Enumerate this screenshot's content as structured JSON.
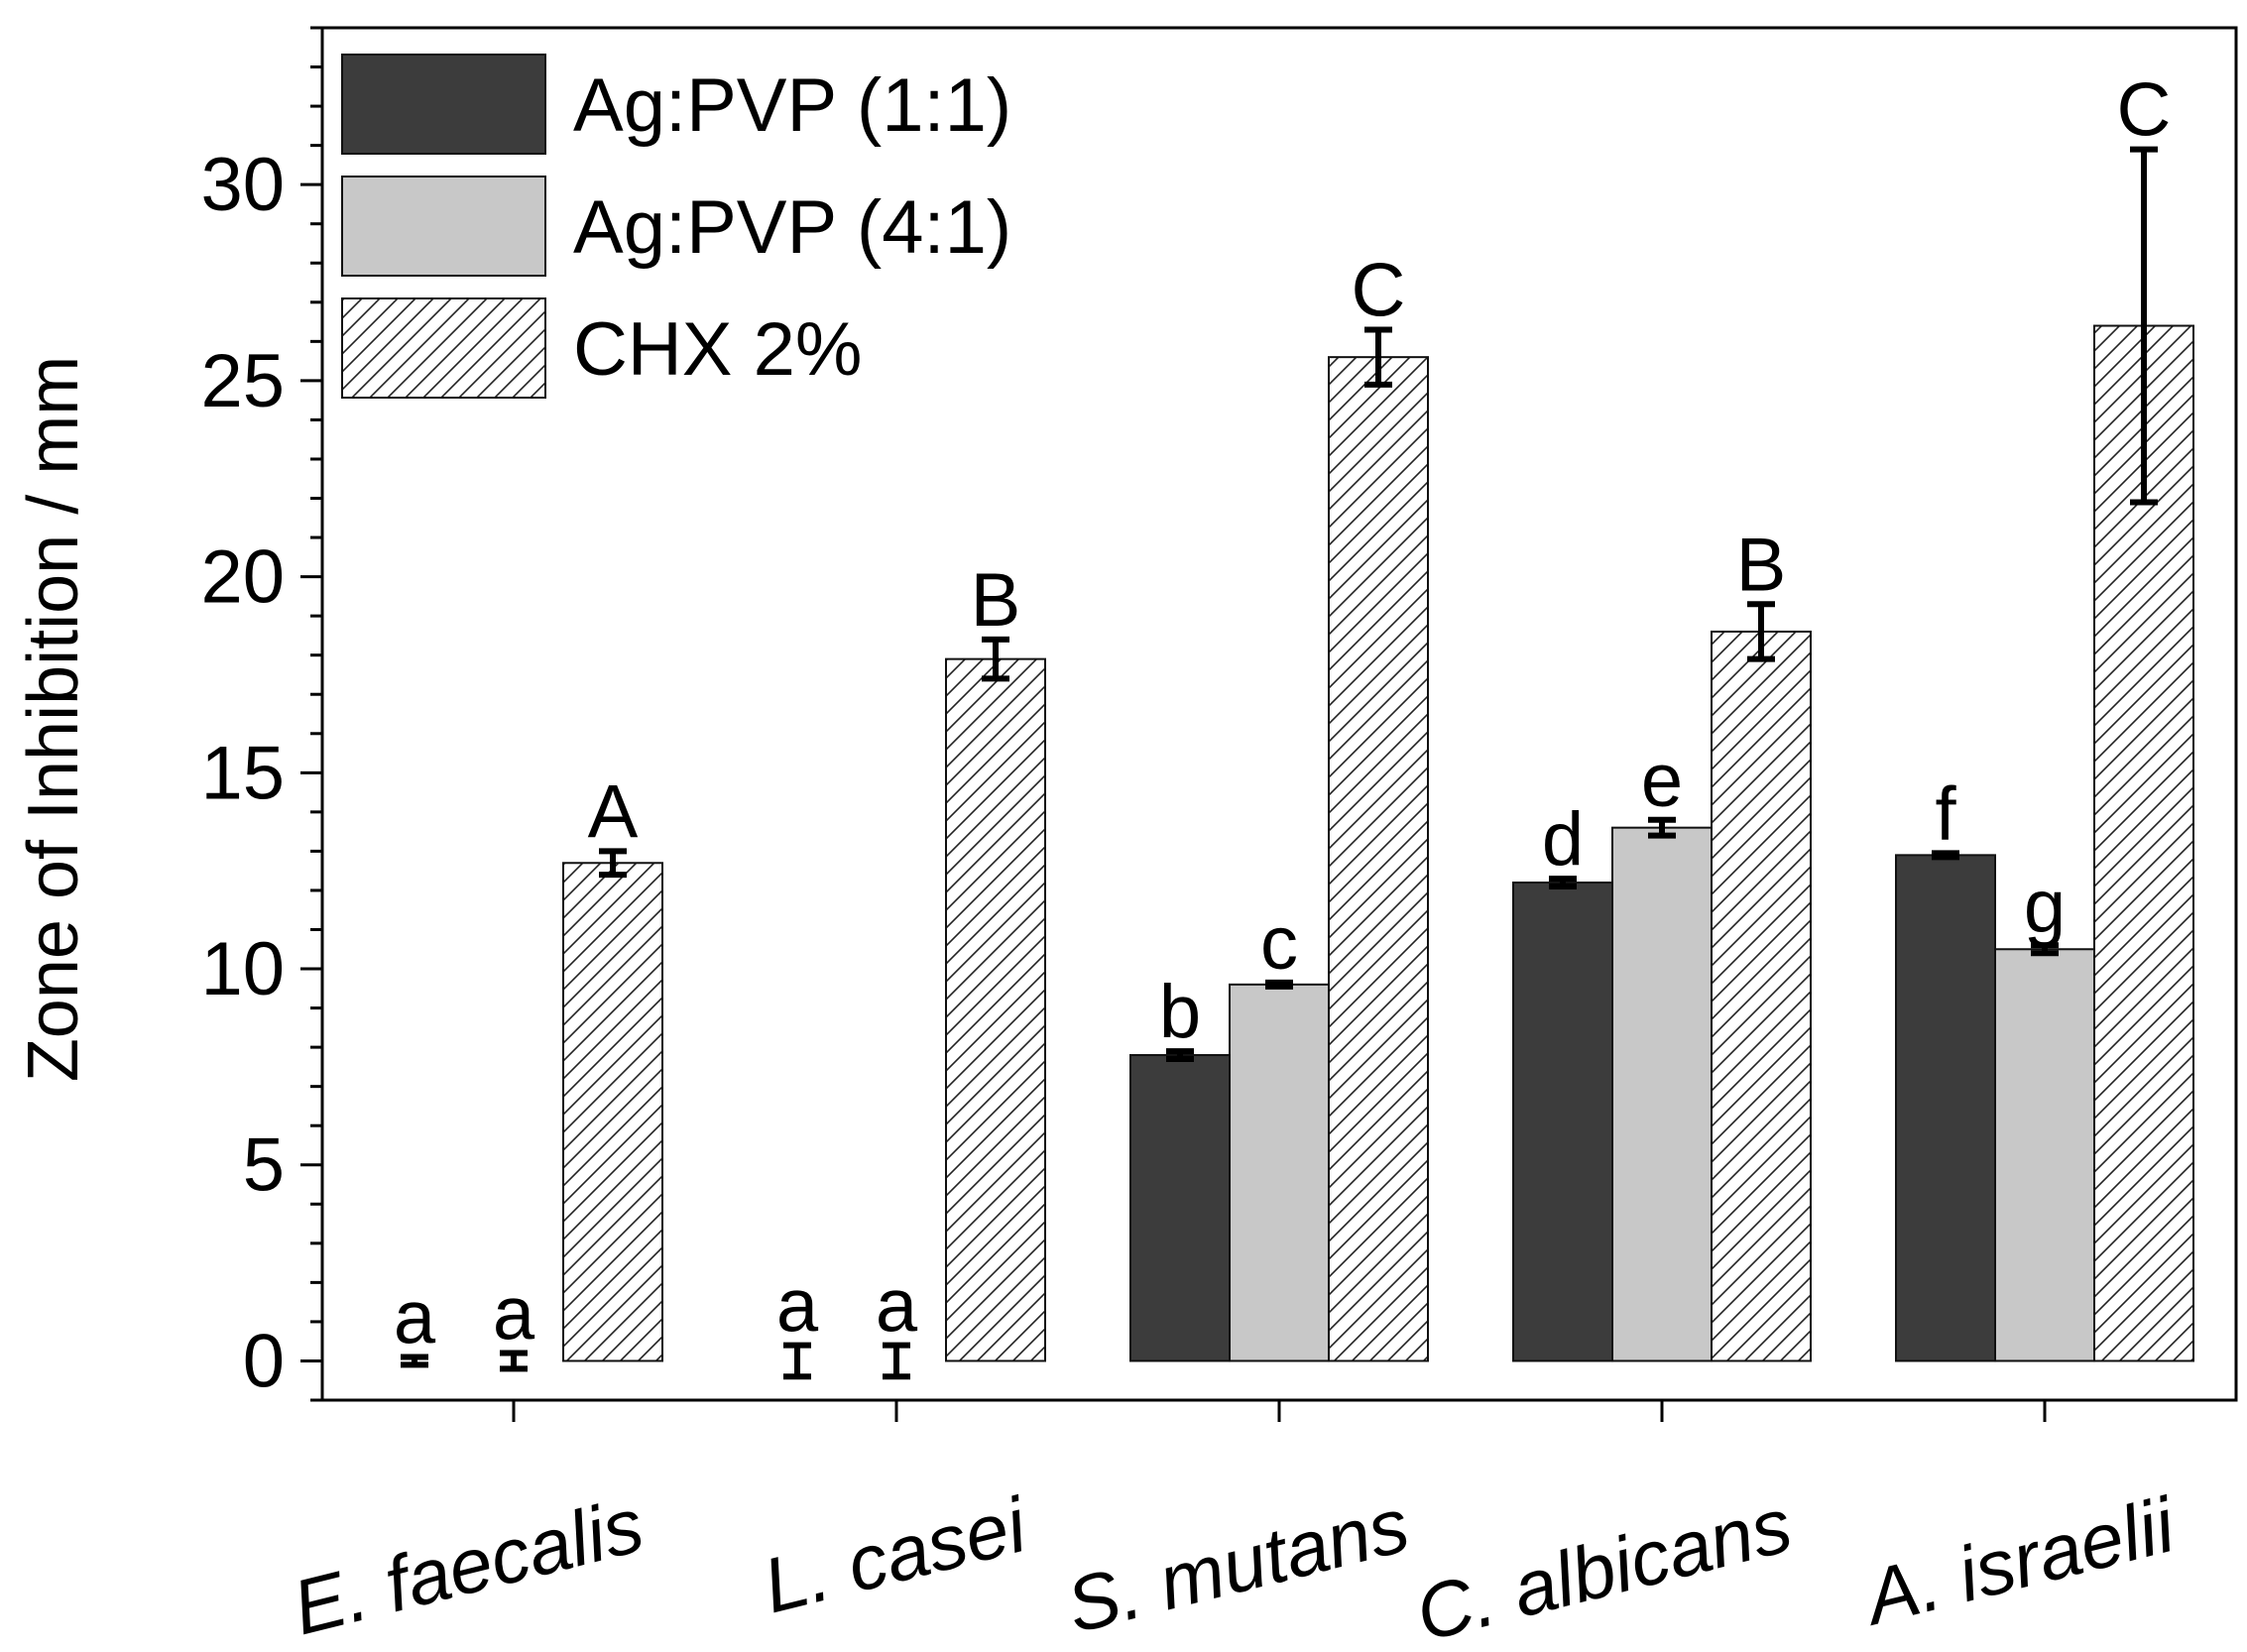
{
  "chart_data": {
    "type": "bar",
    "ylabel": "Zone of Inhibition  / mm",
    "xlabel": "",
    "ylim": [
      -1,
      34
    ],
    "yticks": [
      0,
      5,
      10,
      15,
      20,
      25,
      30
    ],
    "yminor_step": 1,
    "legend_position": "top-left",
    "categories": [
      "E. faecalis",
      "L. casei",
      "S. mutans",
      "C. albicans",
      "A. israelii"
    ],
    "series": [
      {
        "name": "Ag:PVP (1:1)",
        "fill": "#3c3c3c",
        "pattern": "solid",
        "values": [
          0.0,
          0.0,
          7.8,
          12.2,
          12.9
        ],
        "errors": [
          0.1,
          0.4,
          0.1,
          0.1,
          0.05
        ],
        "letters": [
          "a",
          "a",
          "b",
          "d",
          "f"
        ]
      },
      {
        "name": "Ag:PVP (4:1)",
        "fill": "#c8c8c8",
        "pattern": "solid",
        "values": [
          0.0,
          0.0,
          9.6,
          13.6,
          10.5
        ],
        "errors": [
          0.2,
          0.4,
          0.05,
          0.2,
          0.1
        ],
        "letters": [
          "a",
          "a",
          "c",
          "e",
          "g"
        ]
      },
      {
        "name": "CHX 2%",
        "fill": "#ffffff",
        "pattern": "hatch",
        "values": [
          12.7,
          17.9,
          25.6,
          18.6,
          26.4
        ],
        "errors": [
          0.3,
          0.5,
          0.7,
          0.7,
          4.5
        ],
        "letters": [
          "A",
          "B",
          "C",
          "B",
          "C"
        ]
      }
    ]
  }
}
